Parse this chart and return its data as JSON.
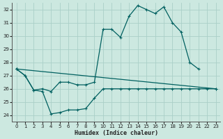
{
  "xlabel": "Humidex (Indice chaleur)",
  "bg_color": "#cce8e0",
  "grid_color": "#aacfc8",
  "line_color": "#006060",
  "xlim": [
    -0.5,
    23.5
  ],
  "ylim": [
    23.5,
    32.5
  ],
  "xticks": [
    0,
    1,
    2,
    3,
    4,
    5,
    6,
    7,
    8,
    9,
    10,
    11,
    12,
    13,
    14,
    15,
    16,
    17,
    18,
    19,
    20,
    21,
    22,
    23
  ],
  "yticks": [
    24,
    25,
    26,
    27,
    28,
    29,
    30,
    31,
    32
  ],
  "line_upper": {
    "x": [
      0,
      1,
      2,
      3,
      4,
      5,
      6,
      7,
      8,
      9,
      10,
      11,
      12,
      13,
      14,
      15,
      16,
      17,
      18,
      19,
      20,
      21
    ],
    "y": [
      27.5,
      27.0,
      25.9,
      26.0,
      25.8,
      26.5,
      26.5,
      26.3,
      26.3,
      26.5,
      30.5,
      30.5,
      29.9,
      31.5,
      32.3,
      32.0,
      31.7,
      32.2,
      31.0,
      30.3,
      28.0,
      27.5
    ]
  },
  "line_lower": {
    "x": [
      0,
      1,
      2,
      3,
      4,
      5,
      6,
      7,
      8,
      9,
      10,
      11,
      12,
      13,
      14,
      15,
      16,
      17,
      18,
      19,
      20,
      21,
      22,
      23
    ],
    "y": [
      27.5,
      27.0,
      25.9,
      25.8,
      24.1,
      24.2,
      24.4,
      24.4,
      24.5,
      25.3,
      26.0,
      26.0,
      26.0,
      26.0,
      26.0,
      26.0,
      26.0,
      26.0,
      26.0,
      26.0,
      26.0,
      26.0,
      26.0,
      26.0
    ]
  },
  "line_diag": {
    "x": [
      0,
      23
    ],
    "y": [
      27.5,
      26.0
    ]
  }
}
